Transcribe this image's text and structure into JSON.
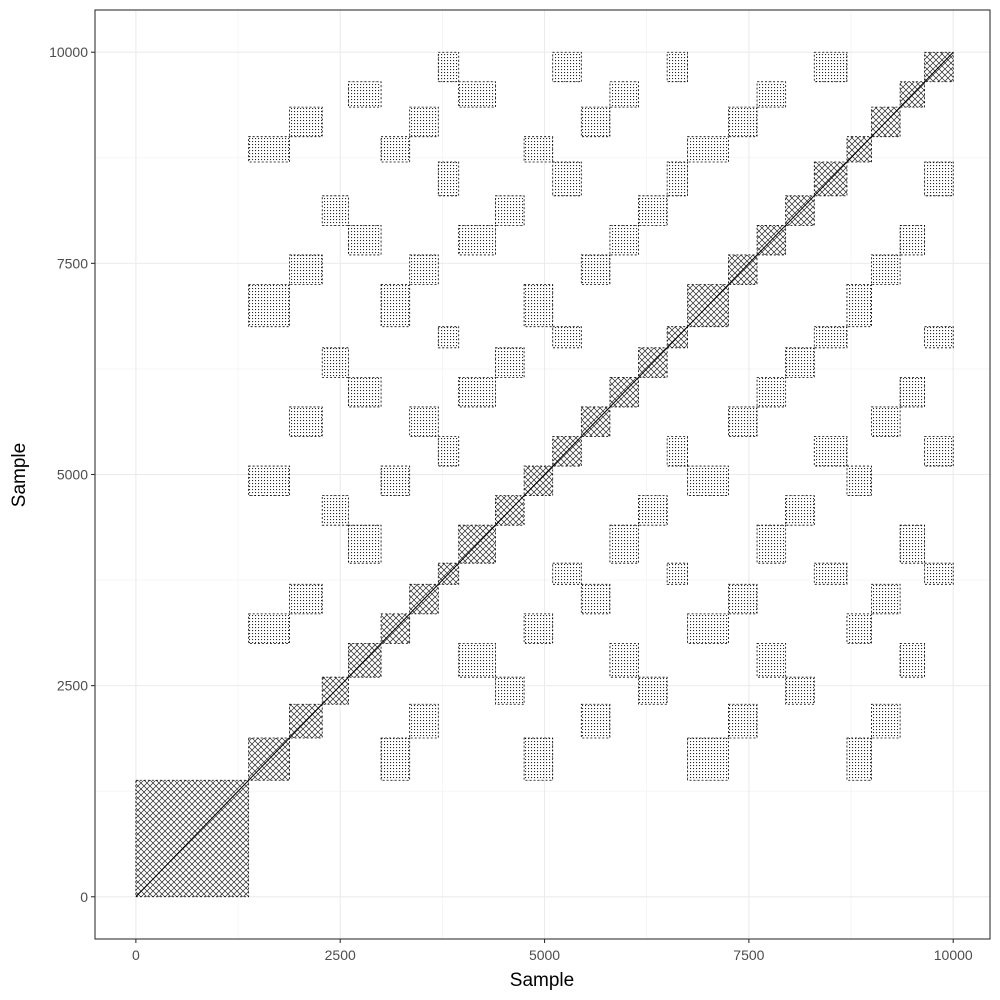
{
  "chart_data": {
    "type": "heatmap",
    "title": "",
    "xlabel": "Sample",
    "ylabel": "Sample",
    "xlim": [
      -500,
      10450
    ],
    "ylim": [
      -500,
      10500
    ],
    "x_ticks": [
      0,
      2500,
      5000,
      7500,
      10000
    ],
    "y_ticks": [
      0,
      2500,
      5000,
      7500,
      10000
    ],
    "x_tick_labels": [
      "0",
      "2500",
      "5000",
      "7500",
      "10000"
    ],
    "y_tick_labels": [
      "0",
      "2500",
      "5000",
      "7500",
      "10000"
    ],
    "grid": true,
    "theme": "bw",
    "mark_color": "#000000",
    "mark": "recurrence",
    "data_extent": {
      "x": [
        0,
        10000
      ],
      "y": [
        0,
        10000
      ]
    },
    "cluster_segments": [
      {
        "range": [
          0,
          1380
        ],
        "group": "A"
      },
      {
        "range": [
          1380,
          1880
        ],
        "group": "B"
      },
      {
        "range": [
          1880,
          2280
        ],
        "group": "C"
      },
      {
        "range": [
          2280,
          2600
        ],
        "group": "D"
      },
      {
        "range": [
          2600,
          3000
        ],
        "group": "E"
      },
      {
        "range": [
          3000,
          3350
        ],
        "group": "B"
      },
      {
        "range": [
          3350,
          3700
        ],
        "group": "C"
      },
      {
        "range": [
          3700,
          3950
        ],
        "group": "F"
      },
      {
        "range": [
          3950,
          4400
        ],
        "group": "E"
      },
      {
        "range": [
          4400,
          4750
        ],
        "group": "D"
      },
      {
        "range": [
          4750,
          5100
        ],
        "group": "B"
      },
      {
        "range": [
          5100,
          5450
        ],
        "group": "F"
      },
      {
        "range": [
          5450,
          5800
        ],
        "group": "C"
      },
      {
        "range": [
          5800,
          6150
        ],
        "group": "E"
      },
      {
        "range": [
          6150,
          6500
        ],
        "group": "D"
      },
      {
        "range": [
          6500,
          6750
        ],
        "group": "F"
      },
      {
        "range": [
          6750,
          7250
        ],
        "group": "B"
      },
      {
        "range": [
          7250,
          7600
        ],
        "group": "C"
      },
      {
        "range": [
          7600,
          7950
        ],
        "group": "E"
      },
      {
        "range": [
          7950,
          8300
        ],
        "group": "D"
      },
      {
        "range": [
          8300,
          8700
        ],
        "group": "F"
      },
      {
        "range": [
          8700,
          9000
        ],
        "group": "B"
      },
      {
        "range": [
          9000,
          9350
        ],
        "group": "C"
      },
      {
        "range": [
          9350,
          9650
        ],
        "group": "E"
      },
      {
        "range": [
          9650,
          10000
        ],
        "group": "F"
      }
    ]
  }
}
